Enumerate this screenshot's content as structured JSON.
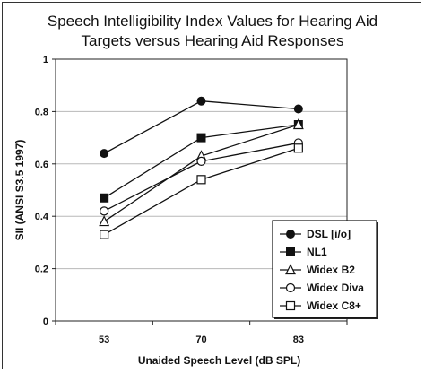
{
  "chart_data": {
    "type": "line",
    "title_lines": [
      "Speech Intelligibility Index Values for Hearing Aid",
      "Targets versus Hearing Aid Responses"
    ],
    "xlabel": "Unaided Speech Level (dB SPL)",
    "ylabel": "SII (ANSI S3.5 1997)",
    "categories": [
      "53",
      "70",
      "83"
    ],
    "ylim": [
      0,
      1
    ],
    "yticks": [
      "0",
      "0.2",
      "0.4",
      "0.6",
      "0.8",
      "1"
    ],
    "ytick_values": [
      0,
      0.2,
      0.4,
      0.6,
      0.8,
      1.0
    ],
    "grid": true,
    "legend_position": "bottom-right",
    "series": [
      {
        "name": "DSL [i/o]",
        "marker": "circle-filled",
        "values": [
          0.64,
          0.84,
          0.81
        ]
      },
      {
        "name": "NL1",
        "marker": "square-filled",
        "values": [
          0.47,
          0.7,
          0.75
        ]
      },
      {
        "name": "Widex B2",
        "marker": "triangle-open",
        "values": [
          0.38,
          0.63,
          0.75
        ]
      },
      {
        "name": "Widex Diva",
        "marker": "circle-open",
        "values": [
          0.42,
          0.61,
          0.68
        ]
      },
      {
        "name": "Widex C8+",
        "marker": "square-open",
        "values": [
          0.33,
          0.54,
          0.66
        ]
      }
    ]
  }
}
